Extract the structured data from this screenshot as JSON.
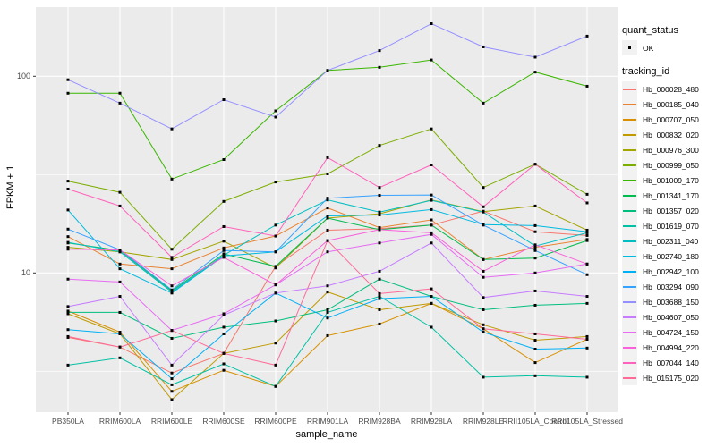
{
  "figure": {
    "background": "#FFFFFF",
    "panel_background": "#EBEBEB",
    "gridline_color": "#FFFFFF",
    "point_color": "#000000",
    "tick_label_color": "#4D4D4D"
  },
  "axes": {
    "x_title": "sample_name",
    "y_title": "FPKM + 1",
    "y_tick_labels": [
      "100",
      "10"
    ]
  },
  "legend": {
    "quant_status_title": "quant_status",
    "quant_status_items": [
      {
        "label": "OK",
        "marker": "point"
      }
    ],
    "tracking_id_title": "tracking_id"
  },
  "chart_data": {
    "type": "line",
    "title": "",
    "xlabel": "sample_name",
    "ylabel": "FPKM + 1",
    "y_scale": "log10",
    "y_major_ticks": [
      10,
      100
    ],
    "y_minor_gridlines": [
      3.162,
      31.62
    ],
    "ylim": [
      1.96,
      224
    ],
    "grid": true,
    "legend_position": "right",
    "marker": "black-point-all-vertices",
    "categories": [
      "PB350LA",
      "RRIM600LA",
      "RRIM600LE",
      "RRIM600SE",
      "RRIM600PE",
      "RRIM901LA",
      "RRIM928BA",
      "RRIM928LA",
      "RRIM928LE",
      "RRII105LA_Control",
      "RRII105LA_Stressed"
    ],
    "series": [
      {
        "name": "Hb_000028_480",
        "color": "#F8766D",
        "values": [
          4.7,
          4.2,
          3.1,
          3.9,
          10.8,
          16.5,
          16.8,
          17.5,
          20.6,
          16.2,
          15.5
        ]
      },
      {
        "name": "Hb_000185_040",
        "color": "#EA8331",
        "values": [
          15.3,
          11.1,
          10.5,
          13.4,
          15.4,
          21.4,
          17.0,
          18.6,
          11.7,
          13.5,
          14.8
        ]
      },
      {
        "name": "Hb_000707_050",
        "color": "#D89000",
        "values": [
          6.4,
          5.0,
          2.5,
          3.2,
          2.65,
          4.8,
          5.5,
          7.0,
          5.2,
          3.5,
          4.6
        ]
      },
      {
        "name": "Hb_000832_020",
        "color": "#C09B00",
        "values": [
          6.2,
          4.9,
          2.27,
          3.9,
          4.4,
          8.0,
          6.5,
          7.0,
          5.45,
          4.55,
          4.75
        ]
      },
      {
        "name": "Hb_000976_300",
        "color": "#A3A500",
        "values": [
          13.5,
          12.8,
          11.7,
          14.5,
          10.6,
          19.0,
          20.0,
          23.5,
          20.5,
          21.9,
          16.5
        ]
      },
      {
        "name": "Hb_000999_050",
        "color": "#7CAE00",
        "values": [
          29.3,
          25.7,
          13.2,
          23.1,
          29.0,
          31.9,
          44.5,
          54.0,
          27.2,
          35.7,
          25.1
        ]
      },
      {
        "name": "Hb_001009_170",
        "color": "#39B600",
        "values": [
          82,
          82,
          30,
          37.7,
          66.7,
          107,
          111,
          121,
          73,
          105,
          89
        ]
      },
      {
        "name": "Hb_001341_170",
        "color": "#00BB4E",
        "values": [
          14.2,
          13.0,
          8.1,
          12.5,
          10.8,
          19.0,
          16.6,
          17.5,
          11.7,
          11.9,
          14.6
        ]
      },
      {
        "name": "Hb_001357_020",
        "color": "#00BF7D",
        "values": [
          6.3,
          6.3,
          4.65,
          5.3,
          5.7,
          6.5,
          9.3,
          7.6,
          6.5,
          6.85,
          7.0
        ]
      },
      {
        "name": "Hb_001619_070",
        "color": "#00C1A3",
        "values": [
          3.4,
          3.7,
          2.7,
          3.45,
          2.65,
          6.3,
          7.6,
          5.3,
          2.95,
          3.0,
          2.95
        ]
      },
      {
        "name": "Hb_002311_040",
        "color": "#00BFC4",
        "values": [
          14.3,
          12.8,
          8.0,
          12.3,
          17.5,
          23.5,
          20.4,
          23.4,
          20.4,
          13.7,
          16.0
        ]
      },
      {
        "name": "Hb_002740_180",
        "color": "#00BAE0",
        "values": [
          20.9,
          10.5,
          7.9,
          12.2,
          12.8,
          19.5,
          19.7,
          21.0,
          17.6,
          17.4,
          16.2
        ]
      },
      {
        "name": "Hb_002942_100",
        "color": "#00B0F6",
        "values": [
          5.15,
          4.9,
          2.9,
          4.9,
          7.9,
          5.9,
          7.4,
          7.6,
          5.0,
          4.1,
          4.15
        ]
      },
      {
        "name": "Hb_003294_090",
        "color": "#35A2FF",
        "values": [
          16.7,
          13.1,
          8.2,
          13.0,
          12.8,
          24.0,
          24.8,
          24.9,
          17.5,
          13.0,
          9.8
        ]
      },
      {
        "name": "Hb_003688_150",
        "color": "#9590FF",
        "values": [
          96,
          73,
          54,
          76,
          62,
          107,
          135,
          185,
          141,
          125,
          160
        ]
      },
      {
        "name": "Hb_004607_050",
        "color": "#C77CFF",
        "values": [
          6.75,
          7.6,
          3.4,
          6.1,
          7.9,
          8.6,
          10.2,
          14.2,
          7.5,
          8.1,
          7.6
        ]
      },
      {
        "name": "Hb_004724_150",
        "color": "#E76BF3",
        "values": [
          9.3,
          9.0,
          5.1,
          6.2,
          8.7,
          12.8,
          14.2,
          15.7,
          9.5,
          10.0,
          11.1
        ]
      },
      {
        "name": "Hb_004994_220",
        "color": "#FA62DB",
        "values": [
          13.2,
          13.1,
          8.6,
          12.0,
          8.7,
          14.6,
          16.6,
          16.0,
          10.2,
          13.9,
          11.1
        ]
      },
      {
        "name": "Hb_007044_140",
        "color": "#FF62BC",
        "values": [
          26.7,
          21.9,
          12.0,
          17.2,
          15.4,
          38.6,
          27.2,
          35.4,
          21.7,
          35.7,
          22.7
        ]
      },
      {
        "name": "Hb_015175_020",
        "color": "#FF6A98",
        "values": [
          4.75,
          4.2,
          5.1,
          3.9,
          3.4,
          14.6,
          7.85,
          8.3,
          5.2,
          4.9,
          4.6
        ]
      }
    ]
  }
}
